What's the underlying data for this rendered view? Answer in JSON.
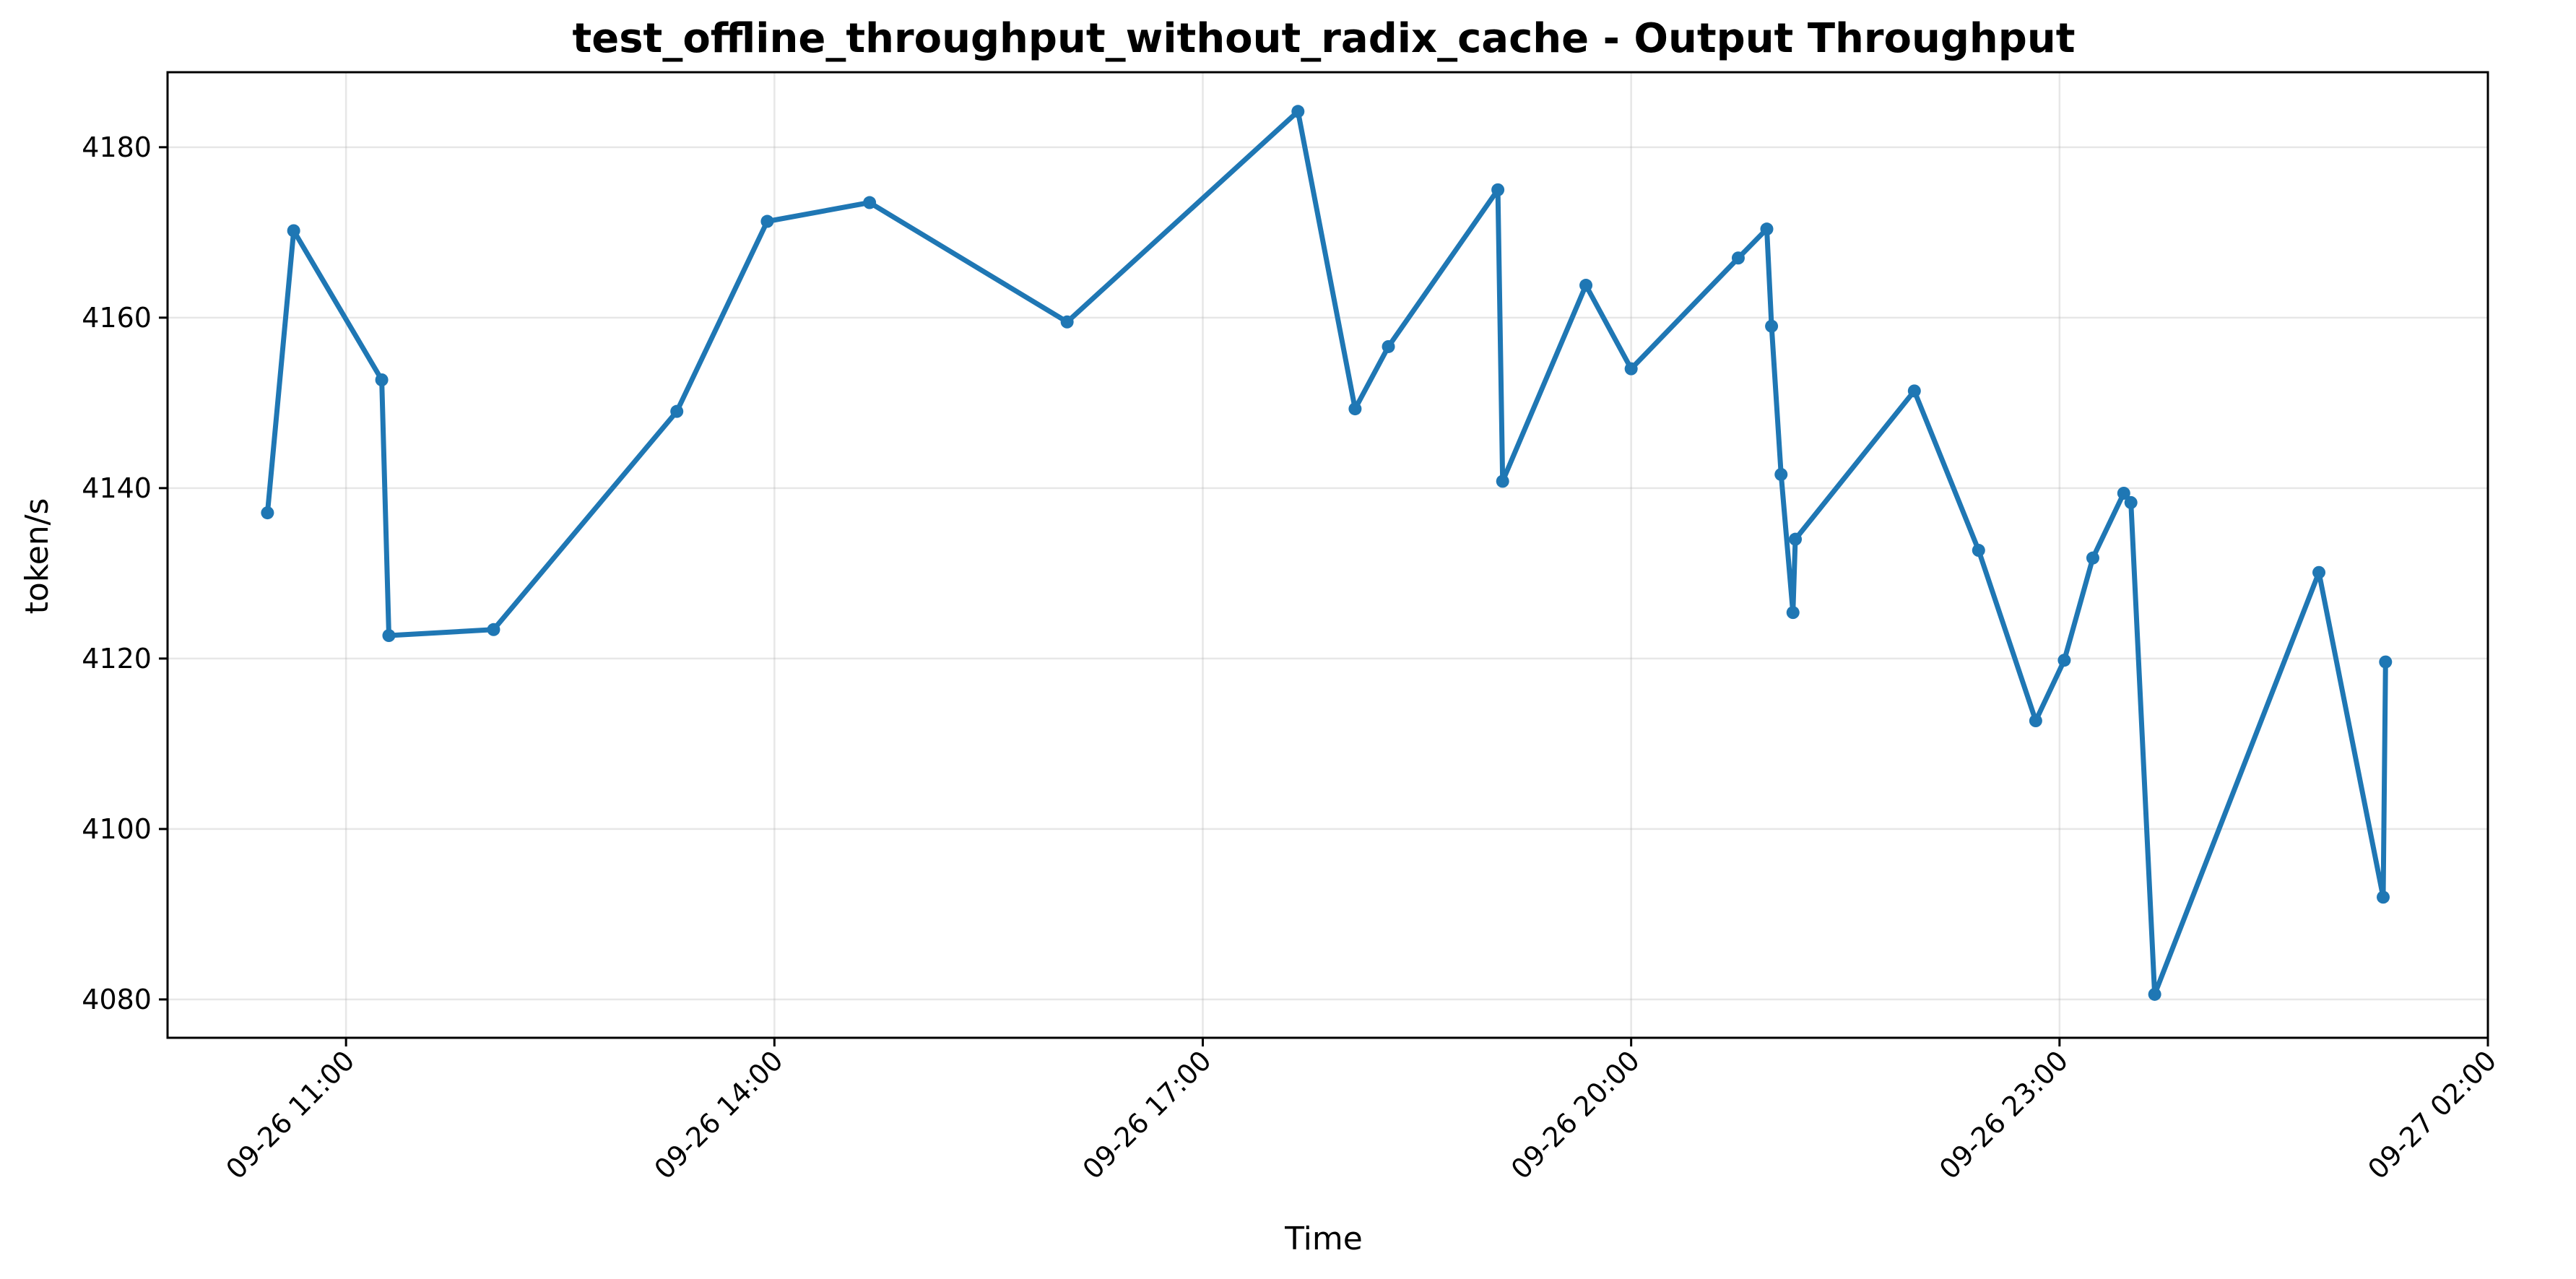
{
  "chart_data": {
    "type": "line",
    "title": "test_offline_throughput_without_radix_cache - Output Throughput",
    "xlabel": "Time",
    "ylabel": "token/s",
    "x_axis_kind": "datetime",
    "xlim": [
      "2025-09-26 09:45",
      "2025-09-27 02:00"
    ],
    "ylim": [
      4075.5,
      4188.8
    ],
    "x_ticks": [
      {
        "value": "2025-09-26 11:00",
        "label": "09-26 11:00"
      },
      {
        "value": "2025-09-26 14:00",
        "label": "09-26 14:00"
      },
      {
        "value": "2025-09-26 17:00",
        "label": "09-26 17:00"
      },
      {
        "value": "2025-09-26 20:00",
        "label": "09-26 20:00"
      },
      {
        "value": "2025-09-26 23:00",
        "label": "09-26 23:00"
      },
      {
        "value": "2025-09-27 02:00",
        "label": "09-27 02:00"
      }
    ],
    "y_ticks": [
      4080,
      4100,
      4120,
      4140,
      4160,
      4180
    ],
    "grid": true,
    "legend": "none",
    "series": [
      {
        "color": "#1f77b4",
        "marker": "circle",
        "points": [
          {
            "x": "2025-09-26 10:27",
            "y": 4137.1
          },
          {
            "x": "2025-09-26 10:38",
            "y": 4170.2
          },
          {
            "x": "2025-09-26 11:15",
            "y": 4152.7
          },
          {
            "x": "2025-09-26 11:18",
            "y": 4122.7
          },
          {
            "x": "2025-09-26 12:02",
            "y": 4123.4
          },
          {
            "x": "2025-09-26 13:19",
            "y": 4149.0
          },
          {
            "x": "2025-09-26 13:57",
            "y": 4171.3
          },
          {
            "x": "2025-09-26 14:40",
            "y": 4173.5
          },
          {
            "x": "2025-09-26 16:03",
            "y": 4159.5
          },
          {
            "x": "2025-09-26 17:40",
            "y": 4184.2
          },
          {
            "x": "2025-09-26 18:04",
            "y": 4149.3
          },
          {
            "x": "2025-09-26 18:18",
            "y": 4156.6
          },
          {
            "x": "2025-09-26 19:04",
            "y": 4175.0
          },
          {
            "x": "2025-09-26 19:06",
            "y": 4140.8
          },
          {
            "x": "2025-09-26 19:41",
            "y": 4163.8
          },
          {
            "x": "2025-09-26 20:00",
            "y": 4154.0
          },
          {
            "x": "2025-09-26 20:45",
            "y": 4167.0
          },
          {
            "x": "2025-09-26 20:57",
            "y": 4170.4
          },
          {
            "x": "2025-09-26 20:59",
            "y": 4159.0
          },
          {
            "x": "2025-09-26 21:03",
            "y": 4141.6
          },
          {
            "x": "2025-09-26 21:08",
            "y": 4125.4
          },
          {
            "x": "2025-09-26 21:09",
            "y": 4134.0
          },
          {
            "x": "2025-09-26 21:59",
            "y": 4151.4
          },
          {
            "x": "2025-09-26 22:26",
            "y": 4132.7
          },
          {
            "x": "2025-09-26 22:50",
            "y": 4112.7
          },
          {
            "x": "2025-09-26 23:02",
            "y": 4119.8
          },
          {
            "x": "2025-09-26 23:14",
            "y": 4131.8
          },
          {
            "x": "2025-09-26 23:27",
            "y": 4139.4
          },
          {
            "x": "2025-09-26 23:30",
            "y": 4138.3
          },
          {
            "x": "2025-09-26 23:40",
            "y": 4080.6
          },
          {
            "x": "2025-09-27 00:49",
            "y": 4130.1
          },
          {
            "x": "2025-09-27 01:16",
            "y": 4092.0
          },
          {
            "x": "2025-09-27 01:17",
            "y": 4119.6
          }
        ]
      }
    ]
  }
}
